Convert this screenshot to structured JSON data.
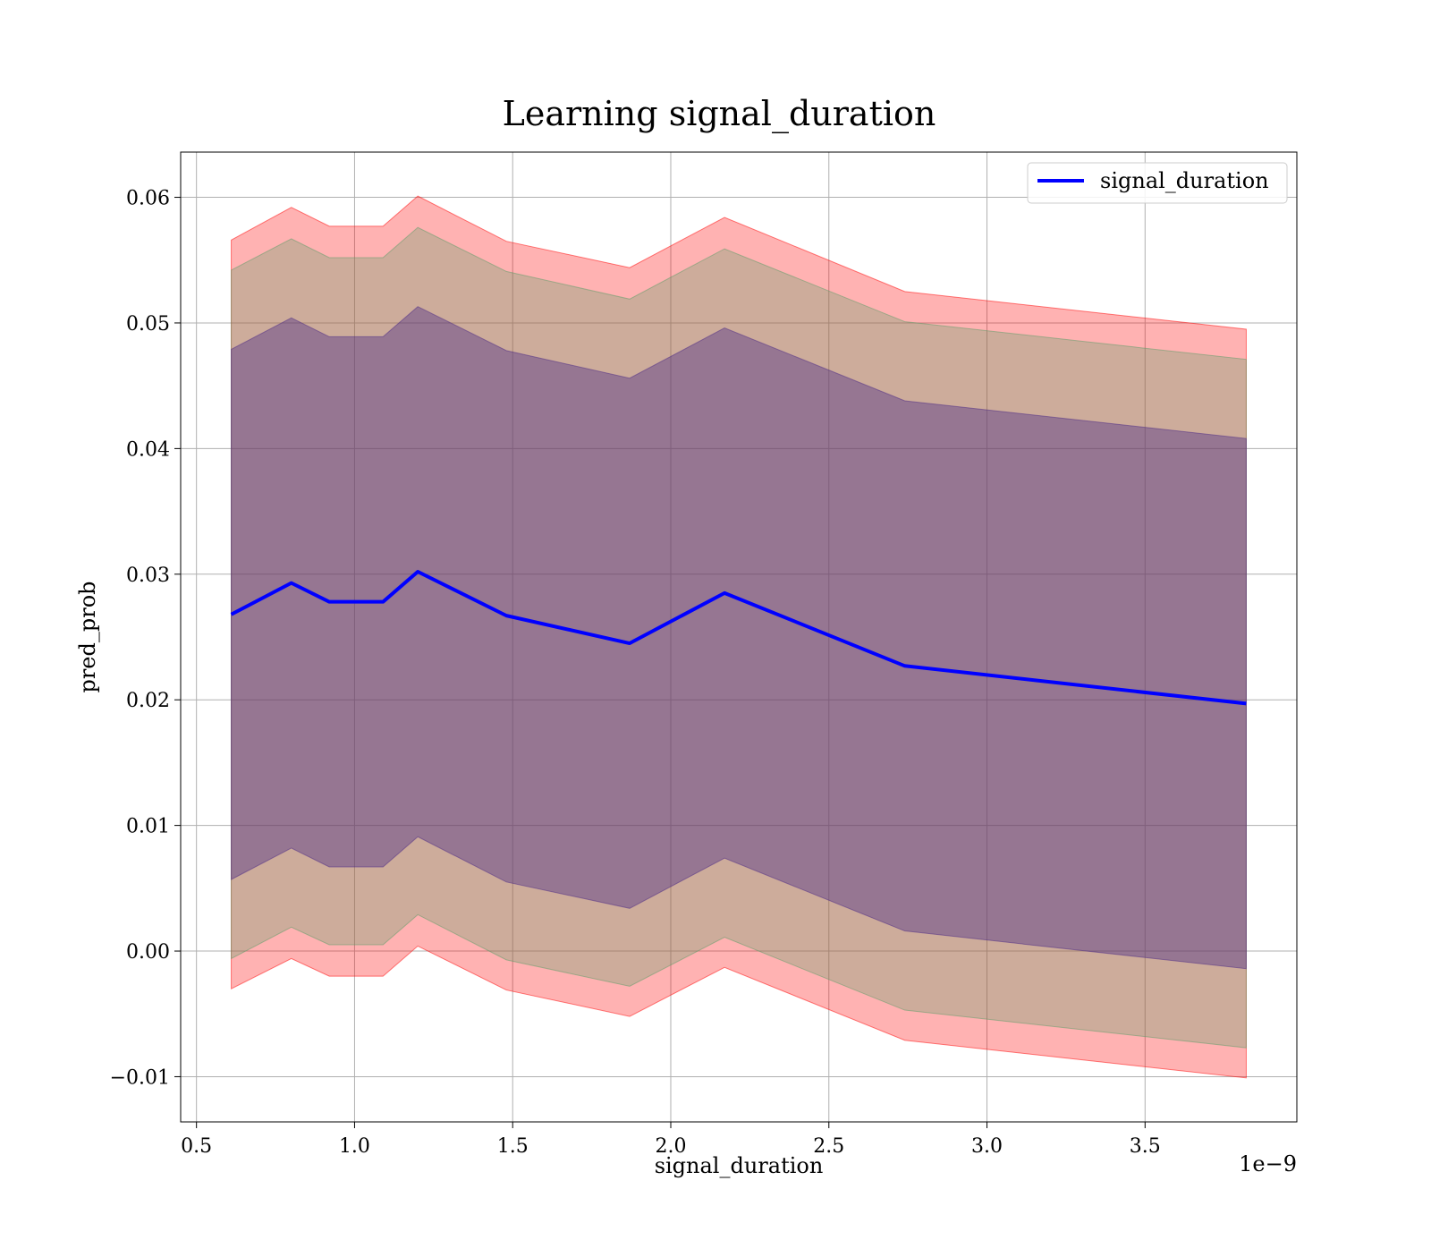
{
  "chart_data": {
    "type": "line",
    "title": "Learning signal_duration",
    "xlabel": "signal_duration",
    "ylabel": "pred_prob",
    "x_offset_label": "1e−9",
    "xlim": [
      0.45,
      3.98
    ],
    "ylim": [
      -0.0136,
      0.0636
    ],
    "xticks": [
      0.5,
      1.0,
      1.5,
      2.0,
      2.5,
      3.0,
      3.5
    ],
    "xtick_labels": [
      "0.5",
      "1.0",
      "1.5",
      "2.0",
      "2.5",
      "3.0",
      "3.5"
    ],
    "yticks": [
      -0.01,
      0.0,
      0.01,
      0.02,
      0.03,
      0.04,
      0.05,
      0.06
    ],
    "ytick_labels": [
      "−0.01",
      "0.00",
      "0.01",
      "0.02",
      "0.03",
      "0.04",
      "0.05",
      "0.06"
    ],
    "grid": true,
    "legend_position": "top-right",
    "x": [
      0.61,
      0.8,
      0.92,
      1.09,
      1.2,
      1.48,
      1.87,
      2.17,
      2.74,
      3.82
    ],
    "series": [
      {
        "name": "signal_duration",
        "color": "#0000ff",
        "values": [
          0.0268,
          0.0293,
          0.0278,
          0.0278,
          0.0302,
          0.0267,
          0.0245,
          0.0285,
          0.0227,
          0.0197
        ]
      }
    ],
    "bands": [
      {
        "color": "#ff0000",
        "opacity": 0.3,
        "lower": [
          -0.003,
          -0.0006,
          -0.002,
          -0.002,
          0.0004,
          -0.0031,
          -0.0052,
          -0.0013,
          -0.0071,
          -0.0101
        ],
        "upper": [
          0.0566,
          0.0592,
          0.0577,
          0.0577,
          0.0601,
          0.0565,
          0.0544,
          0.0584,
          0.0525,
          0.0495
        ]
      },
      {
        "color": "#5a9e68",
        "opacity": 0.3,
        "lower": [
          -0.0006,
          0.0019,
          0.0005,
          0.0005,
          0.0029,
          -0.0007,
          -0.0028,
          0.0011,
          -0.0047,
          -0.0077
        ],
        "upper": [
          0.0542,
          0.0567,
          0.0552,
          0.0552,
          0.0576,
          0.0541,
          0.0519,
          0.0559,
          0.0501,
          0.0471
        ]
      },
      {
        "color": "#4b2a86",
        "opacity": 0.42,
        "lower": [
          0.0057,
          0.0082,
          0.0067,
          0.0067,
          0.0091,
          0.0055,
          0.0034,
          0.0074,
          0.0016,
          -0.0014
        ],
        "upper": [
          0.0479,
          0.0504,
          0.0489,
          0.0489,
          0.0513,
          0.0478,
          0.0456,
          0.0496,
          0.0438,
          0.0408
        ]
      }
    ]
  }
}
